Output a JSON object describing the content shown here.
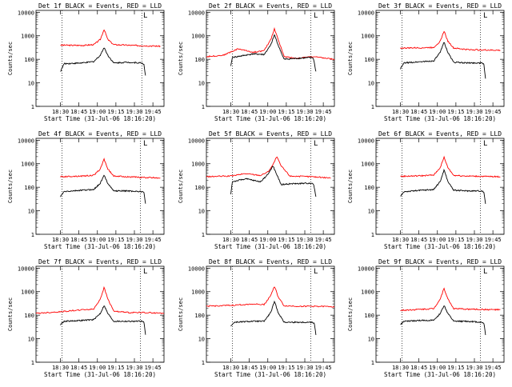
{
  "chart_data": [
    {
      "type": "line",
      "title": "Det 1f BLACK = Events, RED = LLD",
      "xlabel": "Start Time (31-Jul-06 18:16:20)",
      "ylabel": "Counts/sec",
      "x_ticks": [
        "18:30",
        "18:45",
        "19:00",
        "19:15",
        "19:30",
        "19:45"
      ],
      "y_ticks": [
        "1",
        "10",
        "100",
        "1000",
        "10000"
      ],
      "ylim": [
        1,
        12000
      ],
      "xlim": [
        18.17,
        19.9
      ],
      "log_y": true,
      "vlines": [
        18.52,
        19.6
      ],
      "corner_mark": "L",
      "series": [
        {
          "color": "#ff0000",
          "x": [
            18.5,
            18.8,
            18.95,
            19.04,
            19.09,
            19.14,
            19.22,
            19.4,
            19.6,
            19.85
          ],
          "values": [
            400,
            390,
            420,
            700,
            1900,
            700,
            420,
            400,
            380,
            360
          ]
        },
        {
          "color": "#000000",
          "x": [
            18.5,
            18.55,
            18.8,
            18.95,
            19.04,
            19.09,
            19.14,
            19.22,
            19.4,
            19.6,
            19.63,
            19.65
          ],
          "values": [
            30,
            65,
            70,
            80,
            150,
            320,
            150,
            70,
            75,
            70,
            60,
            20
          ]
        }
      ]
    },
    {
      "type": "line",
      "title": "Det 2f BLACK = Events, RED = LLD",
      "xlabel": "Start Time (31-Jul-06 18:16:20)",
      "ylabel": "Counts/sec",
      "x_ticks": [
        "18:30",
        "18:45",
        "19:00",
        "19:15",
        "19:30",
        "19:45"
      ],
      "y_ticks": [
        "1",
        "10",
        "100",
        "1000",
        "10000"
      ],
      "ylim": [
        1,
        12000
      ],
      "xlim": [
        18.17,
        19.9
      ],
      "log_y": true,
      "vlines": [
        18.52,
        19.58
      ],
      "corner_mark": "L",
      "series": [
        {
          "color": "#ff0000",
          "x": [
            18.17,
            18.4,
            18.6,
            18.8,
            18.95,
            19.04,
            19.09,
            19.14,
            19.22,
            19.4,
            19.6,
            19.9
          ],
          "values": [
            130,
            150,
            280,
            200,
            230,
            700,
            2000,
            700,
            130,
            110,
            130,
            100
          ]
        },
        {
          "color": "#000000",
          "x": [
            18.5,
            18.52,
            18.8,
            18.95,
            19.04,
            19.09,
            19.14,
            19.22,
            19.4,
            19.6,
            19.62,
            19.65
          ],
          "values": [
            50,
            120,
            170,
            160,
            400,
            1100,
            400,
            100,
            110,
            120,
            100,
            30
          ]
        }
      ]
    },
    {
      "type": "line",
      "title": "Det 3f BLACK = Events, RED = LLD",
      "xlabel": "Start Time (31-Jul-06 18:16:20)",
      "ylabel": "Counts/sec",
      "x_ticks": [
        "18:30",
        "18:45",
        "19:00",
        "19:15",
        "19:30",
        "19:45"
      ],
      "y_ticks": [
        "1",
        "10",
        "100",
        "1000",
        "10000"
      ],
      "ylim": [
        1,
        12000
      ],
      "xlim": [
        18.17,
        19.9
      ],
      "log_y": true,
      "vlines": [
        18.52,
        19.58
      ],
      "corner_mark": "L",
      "series": [
        {
          "color": "#ff0000",
          "x": [
            18.5,
            18.8,
            18.95,
            19.04,
            19.09,
            19.14,
            19.22,
            19.4,
            19.6,
            19.85
          ],
          "values": [
            300,
            310,
            320,
            600,
            1600,
            600,
            300,
            260,
            250,
            240
          ]
        },
        {
          "color": "#000000",
          "x": [
            18.5,
            18.55,
            18.8,
            18.95,
            19.04,
            19.09,
            19.14,
            19.22,
            19.4,
            19.6,
            19.63,
            19.65
          ],
          "values": [
            40,
            70,
            80,
            85,
            200,
            550,
            200,
            75,
            70,
            70,
            60,
            15
          ]
        }
      ]
    },
    {
      "type": "line",
      "title": "Det 4f BLACK = Events, RED = LLD",
      "xlabel": "Start Time (31-Jul-06 18:16:20)",
      "ylabel": "Counts/sec",
      "x_ticks": [
        "18:30",
        "18:45",
        "19:00",
        "19:15",
        "19:30",
        "19:45"
      ],
      "y_ticks": [
        "1",
        "10",
        "100",
        "1000",
        "10000"
      ],
      "ylim": [
        1,
        12000
      ],
      "xlim": [
        18.17,
        19.9
      ],
      "log_y": true,
      "vlines": [
        18.52,
        19.58
      ],
      "corner_mark": "L",
      "series": [
        {
          "color": "#ff0000",
          "x": [
            18.5,
            18.8,
            18.95,
            19.04,
            19.09,
            19.14,
            19.22,
            19.4,
            19.6,
            19.85
          ],
          "values": [
            280,
            300,
            320,
            600,
            1600,
            600,
            300,
            280,
            260,
            250
          ]
        },
        {
          "color": "#000000",
          "x": [
            18.5,
            18.55,
            18.8,
            18.95,
            19.04,
            19.09,
            19.14,
            19.22,
            19.4,
            19.6,
            19.63,
            19.65
          ],
          "values": [
            40,
            65,
            75,
            80,
            150,
            320,
            150,
            70,
            70,
            65,
            60,
            20
          ]
        }
      ]
    },
    {
      "type": "line",
      "title": "Det 5f BLACK = Events, RED = LLD",
      "xlabel": "Start Time (31-Jul-06 18:16:20)",
      "ylabel": "Counts/sec",
      "x_ticks": [
        "18:30",
        "18:45",
        "19:00",
        "19:15",
        "19:30",
        "19:45"
      ],
      "y_ticks": [
        "1",
        "10",
        "100",
        "1000",
        "10000"
      ],
      "ylim": [
        1,
        12000
      ],
      "xlim": [
        18.17,
        19.9
      ],
      "log_y": true,
      "vlines": [
        18.52,
        19.58
      ],
      "corner_mark": "L",
      "series": [
        {
          "color": "#ff0000",
          "x": [
            18.17,
            18.5,
            18.7,
            18.9,
            19.0,
            19.07,
            19.12,
            19.18,
            19.3,
            19.6,
            19.85
          ],
          "values": [
            280,
            300,
            380,
            320,
            450,
            900,
            2000,
            800,
            300,
            280,
            250
          ]
        },
        {
          "color": "#000000",
          "x": [
            18.5,
            18.52,
            18.7,
            18.9,
            19.0,
            19.07,
            19.12,
            19.18,
            19.3,
            19.6,
            19.62,
            19.65
          ],
          "values": [
            50,
            170,
            230,
            170,
            350,
            800,
            350,
            130,
            140,
            150,
            130,
            40
          ]
        }
      ]
    },
    {
      "type": "line",
      "title": "Det 6f BLACK = Events, RED = LLD",
      "xlabel": "Start Time (31-Jul-06 18:16:20)",
      "ylabel": "Counts/sec",
      "x_ticks": [
        "18:30",
        "18:45",
        "19:00",
        "19:15",
        "19:30",
        "19:45"
      ],
      "y_ticks": [
        "1",
        "10",
        "100",
        "1000",
        "10000"
      ],
      "ylim": [
        1,
        12000
      ],
      "xlim": [
        18.17,
        19.9
      ],
      "log_y": true,
      "vlines": [
        18.52,
        19.58
      ],
      "corner_mark": "L",
      "series": [
        {
          "color": "#ff0000",
          "x": [
            18.5,
            18.8,
            18.95,
            19.04,
            19.09,
            19.14,
            19.22,
            19.4,
            19.6,
            19.85
          ],
          "values": [
            290,
            310,
            330,
            700,
            1900,
            700,
            320,
            300,
            290,
            280
          ]
        },
        {
          "color": "#000000",
          "x": [
            18.5,
            18.55,
            18.8,
            18.95,
            19.04,
            19.09,
            19.14,
            19.22,
            19.4,
            19.6,
            19.63,
            19.65
          ],
          "values": [
            40,
            65,
            75,
            80,
            180,
            550,
            180,
            75,
            70,
            70,
            60,
            20
          ]
        }
      ]
    },
    {
      "type": "line",
      "title": "Det 7f BLACK = Events, RED = LLD",
      "xlabel": "Start Time (31-Jul-06 18:16:20)",
      "ylabel": "Counts/sec",
      "x_ticks": [
        "18:30",
        "18:45",
        "19:00",
        "19:15",
        "19:30",
        "19:45"
      ],
      "y_ticks": [
        "1",
        "10",
        "100",
        "1000",
        "10000"
      ],
      "ylim": [
        1,
        12000
      ],
      "xlim": [
        18.17,
        19.9
      ],
      "log_y": true,
      "vlines": [
        18.52,
        19.58
      ],
      "corner_mark": "L",
      "series": [
        {
          "color": "#ff0000",
          "x": [
            18.17,
            18.5,
            18.8,
            18.95,
            19.04,
            19.09,
            19.14,
            19.22,
            19.4,
            19.6,
            19.9
          ],
          "values": [
            120,
            140,
            170,
            180,
            500,
            1500,
            500,
            150,
            130,
            130,
            120
          ]
        },
        {
          "color": "#000000",
          "x": [
            18.5,
            18.55,
            18.8,
            18.95,
            19.04,
            19.09,
            19.14,
            19.22,
            19.4,
            19.6,
            19.63,
            19.65
          ],
          "values": [
            40,
            55,
            60,
            65,
            120,
            260,
            120,
            55,
            55,
            55,
            50,
            15
          ]
        }
      ]
    },
    {
      "type": "line",
      "title": "Det 8f BLACK = Events, RED = LLD",
      "xlabel": "Start Time (31-Jul-06 18:16:20)",
      "ylabel": "Counts/sec",
      "x_ticks": [
        "18:30",
        "18:45",
        "19:00",
        "19:15",
        "19:30",
        "19:45"
      ],
      "y_ticks": [
        "1",
        "10",
        "100",
        "1000",
        "10000"
      ],
      "ylim": [
        1,
        12000
      ],
      "xlim": [
        18.17,
        19.9
      ],
      "log_y": true,
      "vlines": [
        18.52,
        19.58
      ],
      "corner_mark": "L",
      "series": [
        {
          "color": "#ff0000",
          "x": [
            18.17,
            18.5,
            18.8,
            18.95,
            19.04,
            19.09,
            19.14,
            19.22,
            19.4,
            19.6,
            19.9
          ],
          "values": [
            240,
            260,
            300,
            280,
            700,
            1700,
            600,
            250,
            240,
            240,
            230
          ]
        },
        {
          "color": "#000000",
          "x": [
            18.5,
            18.55,
            18.8,
            18.95,
            19.04,
            19.09,
            19.14,
            19.22,
            19.4,
            19.6,
            19.63,
            19.65
          ],
          "values": [
            35,
            50,
            55,
            55,
            130,
            380,
            130,
            50,
            50,
            50,
            45,
            15
          ]
        }
      ]
    },
    {
      "type": "line",
      "title": "Det 9f BLACK = Events, RED = LLD",
      "xlabel": "Start Time (31-Jul-06 18:16:20)",
      "ylabel": "Counts/sec",
      "x_ticks": [
        "18:30",
        "18:45",
        "19:00",
        "19:15",
        "19:30",
        "19:45"
      ],
      "y_ticks": [
        "1",
        "10",
        "100",
        "1000",
        "10000"
      ],
      "ylim": [
        1,
        12000
      ],
      "xlim": [
        18.17,
        19.9
      ],
      "log_y": true,
      "vlines": [
        18.52,
        19.58
      ],
      "corner_mark": "L",
      "series": [
        {
          "color": "#ff0000",
          "x": [
            18.5,
            18.8,
            18.95,
            19.04,
            19.09,
            19.14,
            19.22,
            19.4,
            19.6,
            19.85
          ],
          "values": [
            160,
            180,
            190,
            500,
            1400,
            500,
            190,
            180,
            175,
            170
          ]
        },
        {
          "color": "#000000",
          "x": [
            18.5,
            18.55,
            18.8,
            18.95,
            19.04,
            19.09,
            19.14,
            19.22,
            19.4,
            19.6,
            19.63,
            19.65
          ],
          "values": [
            40,
            55,
            60,
            60,
            120,
            260,
            120,
            55,
            55,
            50,
            45,
            15
          ]
        }
      ]
    }
  ]
}
